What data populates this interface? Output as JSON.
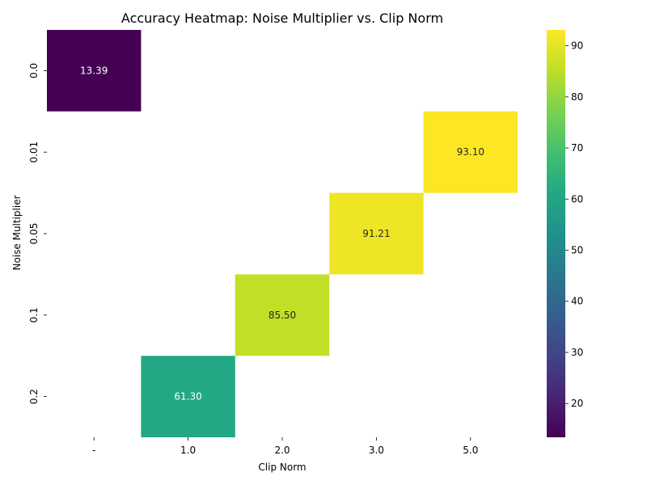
{
  "chart_data": {
    "type": "heatmap",
    "title": "Accuracy Heatmap: Noise Multiplier vs. Clip Norm",
    "xlabel": "Clip Norm",
    "ylabel": "Noise Multiplier",
    "x_categories": [
      "-",
      "1.0",
      "2.0",
      "3.0",
      "5.0"
    ],
    "y_categories": [
      "0.0",
      "0.01",
      "0.05",
      "0.1",
      "0.2"
    ],
    "cells": [
      {
        "x": "-",
        "y": "0.0",
        "value": 13.39,
        "label": "13.39"
      },
      {
        "x": "5.0",
        "y": "0.01",
        "value": 93.1,
        "label": "93.10"
      },
      {
        "x": "3.0",
        "y": "0.05",
        "value": 91.21,
        "label": "91.21"
      },
      {
        "x": "2.0",
        "y": "0.1",
        "value": 85.5,
        "label": "85.50"
      },
      {
        "x": "1.0",
        "y": "0.2",
        "value": 61.3,
        "label": "61.30"
      }
    ],
    "colorbar": {
      "colormap": "viridis",
      "vmin": 13.39,
      "vmax": 93.1,
      "ticks": [
        "20",
        "30",
        "40",
        "50",
        "60",
        "70",
        "80",
        "90"
      ]
    },
    "grid": false
  }
}
